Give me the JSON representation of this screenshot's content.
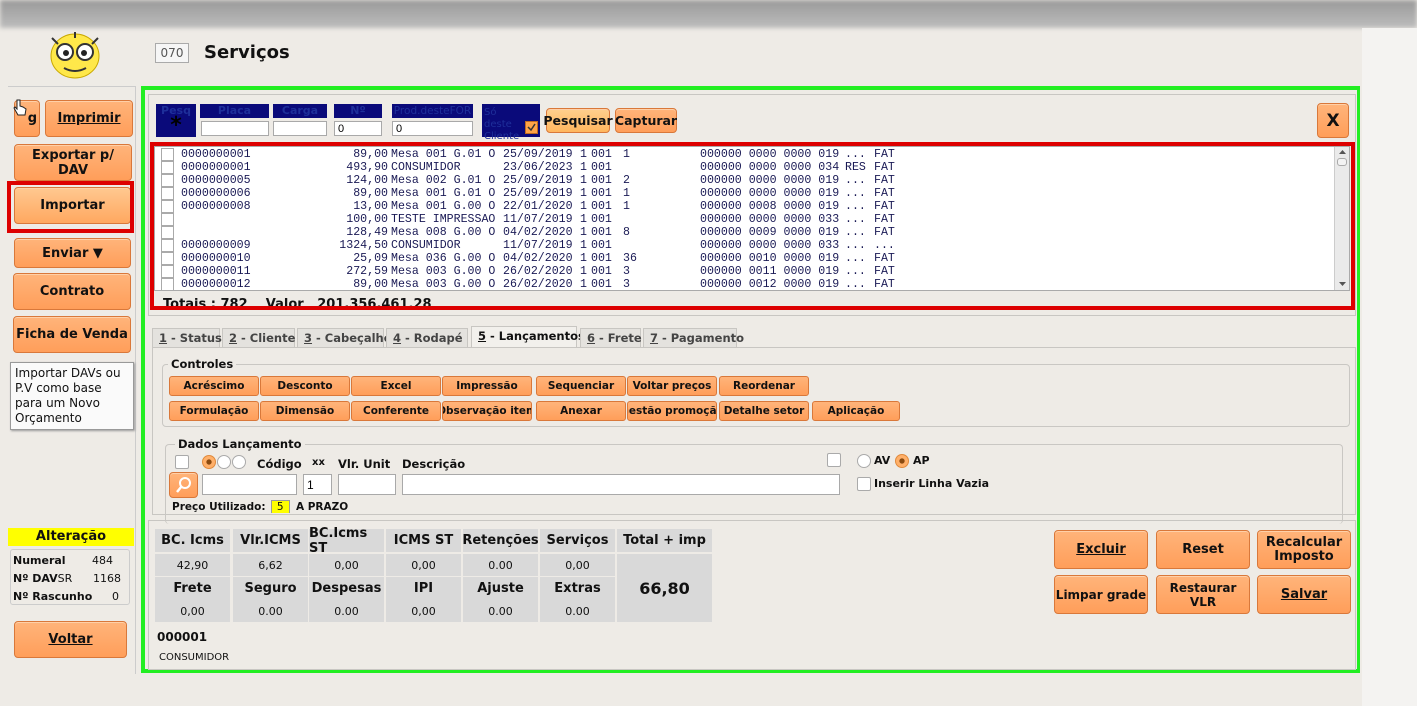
{
  "header": {
    "code": "070",
    "title": "Serviços"
  },
  "sidebar": {
    "buttons": [
      {
        "label": "g"
      },
      {
        "label": "Imprimir"
      },
      {
        "label": "Exportar p/ DAV"
      },
      {
        "label": "Importar"
      },
      {
        "label": "Enviar ▼"
      },
      {
        "label": "Contrato"
      },
      {
        "label": "Ficha de Venda"
      }
    ],
    "tooltip": "Importar DAVs ou P.V   como base para um Novo Orçamento",
    "status_title": "Alteração",
    "stats": [
      {
        "label": "Numeral",
        "suffix": "",
        "value": "484"
      },
      {
        "label": "Nº DAV",
        "suffix": "SR",
        "value": "1168"
      },
      {
        "label": "Nº Rascunho",
        "suffix": "",
        "value": "0"
      }
    ],
    "back": "Voltar"
  },
  "search": {
    "pesq_label": "Pesq",
    "pesq_icon": "*",
    "placa_label": "Placa",
    "placa_value": "",
    "carga_label": "Carga",
    "carga_value": "",
    "num_label": "Nº",
    "num_value": "0",
    "prod_label": "Prod.desteFOR",
    "prod_value": "0",
    "so_cliente_label": "Só deste Cliente",
    "so_cliente_checked": true,
    "pesquisar": "Pesquisar",
    "capturar": "Capturar",
    "close": "X"
  },
  "grid": {
    "rows": [
      {
        "id": "0000000001",
        "valor": "89,00",
        "desc": "Mesa 001 G.01 O",
        "data": "25/09/2019",
        "a": "1",
        "b": "001",
        "c": "1",
        "codes": "000000 0000 0000 019",
        "flag": "...",
        "status": "FAT"
      },
      {
        "id": "0000000001",
        "valor": "493,90",
        "desc": "CONSUMIDOR",
        "data": "23/06/2023",
        "a": "1",
        "b": "001",
        "c": "",
        "codes": "000000 0000 0000 034",
        "flag": "RES",
        "status": "FAT"
      },
      {
        "id": "0000000005",
        "valor": "124,00",
        "desc": "Mesa 002 G.01 O",
        "data": "25/09/2019",
        "a": "1",
        "b": "001",
        "c": "2",
        "codes": "000000 0000 0000 019",
        "flag": "...",
        "status": "FAT"
      },
      {
        "id": "0000000006",
        "valor": "89,00",
        "desc": "Mesa 001 G.01 O",
        "data": "25/09/2019",
        "a": "1",
        "b": "001",
        "c": "1",
        "codes": "000000 0000 0000 019",
        "flag": "...",
        "status": "FAT"
      },
      {
        "id": "0000000008",
        "valor": "13,00",
        "desc": "Mesa 001 G.00 O",
        "data": "22/01/2020",
        "a": "1",
        "b": "001",
        "c": "1",
        "codes": "000000 0008 0000 019",
        "flag": "...",
        "status": "FAT"
      },
      {
        "id": "",
        "valor": "100,00",
        "desc": "TESTE IMPRESSAO",
        "data": "11/07/2019",
        "a": "1",
        "b": "001",
        "c": "",
        "codes": "000000 0000 0000 033",
        "flag": "...",
        "status": "FAT"
      },
      {
        "id": "",
        "valor": "128,49",
        "desc": "Mesa 008 G.00 O",
        "data": "04/02/2020",
        "a": "1",
        "b": "001",
        "c": "8",
        "codes": "000000 0009 0000 019",
        "flag": "...",
        "status": "FAT"
      },
      {
        "id": "0000000009",
        "valor": "1324,50",
        "desc": "CONSUMIDOR",
        "data": "11/07/2019",
        "a": "1",
        "b": "001",
        "c": "",
        "codes": "000000 0000 0000 033",
        "flag": "...",
        "status": "..."
      },
      {
        "id": "0000000010",
        "valor": "25,09",
        "desc": "Mesa 036 G.00 O",
        "data": "04/02/2020",
        "a": "1",
        "b": "001",
        "c": "36",
        "codes": "000000 0010 0000 019",
        "flag": "...",
        "status": "FAT"
      },
      {
        "id": "0000000011",
        "valor": "272,59",
        "desc": "Mesa 003 G.00 O",
        "data": "26/02/2020",
        "a": "1",
        "b": "001",
        "c": "3",
        "codes": "000000 0011 0000 019",
        "flag": "...",
        "status": "FAT"
      },
      {
        "id": "0000000012",
        "valor": "89,00",
        "desc": "Mesa 003 G.00 O",
        "data": "26/02/2020",
        "a": "1",
        "b": "001",
        "c": "3",
        "codes": "000000 0012 0000 019",
        "flag": "...",
        "status": "FAT"
      }
    ],
    "totals": "Totais : 782    Valor   201.356.461,28"
  },
  "tabs": [
    {
      "key": "1",
      "label": " - Status"
    },
    {
      "key": "2",
      "label": " - Cliente"
    },
    {
      "key": "3",
      "label": " - Cabeçalho"
    },
    {
      "key": "4",
      "label": " - Rodapé"
    },
    {
      "key": "5",
      "label": " - Lançamentos",
      "active": true
    },
    {
      "key": "6",
      "label": " - Frete"
    },
    {
      "key": "7",
      "label": " - Pagamento"
    }
  ],
  "controles": {
    "title": "Controles",
    "row1": [
      "Acréscimo",
      "Desconto",
      "Excel",
      "Impressão",
      "Sequenciar",
      "Voltar preços",
      "Reordenar"
    ],
    "row2": [
      "Formulação",
      "Dimensão",
      "Conferente",
      "Observação item",
      "Anexar",
      "Gestão promoção",
      "Detalhe setor",
      "Aplicação"
    ]
  },
  "dados": {
    "title": "Dados Lançamento",
    "codigo": "Código",
    "xx": "xx",
    "vlr_unit": "Vlr. Unit",
    "descricao": "Descrição",
    "qty_value": "1",
    "av": "AV",
    "ap": "AP",
    "ap_selected": true,
    "inserir": "Inserir Linha Vazia",
    "preco_label": "Preço Utilizado:",
    "preco_value": "5",
    "preco_desc": "A PRAZO"
  },
  "totals": {
    "row1": [
      {
        "label": "BC. Icms",
        "value": "42,90"
      },
      {
        "label": "Vlr.ICMS",
        "value": "6,62"
      },
      {
        "label": "BC.Icms ST",
        "value": "0,00"
      },
      {
        "label": "ICMS ST",
        "value": "0,00"
      },
      {
        "label": "Retenções",
        "value": "0.00"
      },
      {
        "label": "Serviços",
        "value": "0,00"
      }
    ],
    "row2": [
      {
        "label": "Frete",
        "value": "0,00"
      },
      {
        "label": "Seguro",
        "value": "0.00"
      },
      {
        "label": "Despesas",
        "value": "0.00"
      },
      {
        "label": "IPI",
        "value": "0,00"
      },
      {
        "label": "Ajuste",
        "value": "0.00"
      },
      {
        "label": "Extras",
        "value": "0.00"
      }
    ],
    "total_label": "Total + imp",
    "total_value": "66,80",
    "client_code": "000001",
    "client_name": "CONSUMIDOR"
  },
  "actions": {
    "excluir": "Excluir",
    "reset": "Reset",
    "recalcular": "Recalcular Imposto",
    "limpar": "Limpar grade",
    "restaurar": "Restaurar VLR",
    "salvar": "Salvar"
  },
  "colors": {
    "accent": "#ff9e5a",
    "highlight_red": "#dd0000",
    "frame_green": "#22ee22",
    "header_navy": "#0a0a7a",
    "yellow": "#ffff00"
  }
}
